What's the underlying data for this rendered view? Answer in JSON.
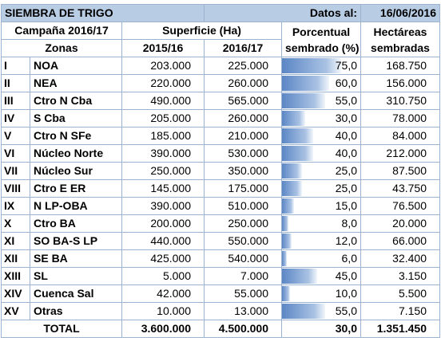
{
  "title": "SIEMBRA DE TRIGO",
  "datos_label": "Datos al:",
  "date": "16/06/2016",
  "headers": {
    "campaign": "Campaña 2016/17",
    "surface": "Superficie (Ha)",
    "percent_l1": "Porcentual",
    "percent_l2": "sembrado (%)",
    "hect_l1": "Hectáreas",
    "hect_l2": "sembradas",
    "zones": "Zonas",
    "y1": "2015/16",
    "y2": "2016/17"
  },
  "rows": [
    {
      "num": "I",
      "zone": "NOA",
      "s15": "203.000",
      "s16": "225.000",
      "pct": "75,0",
      "pct_value": 75,
      "ha": "168.750"
    },
    {
      "num": "II",
      "zone": "NEA",
      "s15": "220.000",
      "s16": "260.000",
      "pct": "60,0",
      "pct_value": 60,
      "ha": "156.000"
    },
    {
      "num": "III",
      "zone": "Ctro N Cba",
      "s15": "490.000",
      "s16": "565.000",
      "pct": "55,0",
      "pct_value": 55,
      "ha": "310.750"
    },
    {
      "num": "IV",
      "zone": "S Cba",
      "s15": "205.000",
      "s16": "260.000",
      "pct": "30,0",
      "pct_value": 30,
      "ha": "78.000"
    },
    {
      "num": "V",
      "zone": "Ctro N SFe",
      "s15": "185.000",
      "s16": "210.000",
      "pct": "40,0",
      "pct_value": 40,
      "ha": "84.000"
    },
    {
      "num": "VI",
      "zone": "Núcleo Norte",
      "s15": "390.000",
      "s16": "530.000",
      "pct": "40,0",
      "pct_value": 40,
      "ha": "212.000"
    },
    {
      "num": "VII",
      "zone": "Núcleo Sur",
      "s15": "250.000",
      "s16": "350.000",
      "pct": "25,0",
      "pct_value": 25,
      "ha": "87.500"
    },
    {
      "num": "VIII",
      "zone": "Ctro E ER",
      "s15": "145.000",
      "s16": "175.000",
      "pct": "25,0",
      "pct_value": 25,
      "ha": "43.750"
    },
    {
      "num": "IX",
      "zone": "N LP-OBA",
      "s15": "390.000",
      "s16": "510.000",
      "pct": "15,0",
      "pct_value": 15,
      "ha": "76.500"
    },
    {
      "num": "X",
      "zone": "Ctro BA",
      "s15": "200.000",
      "s16": "250.000",
      "pct": "8,0",
      "pct_value": 8,
      "ha": "20.000"
    },
    {
      "num": "XI",
      "zone": "SO BA-S LP",
      "s15": "440.000",
      "s16": "550.000",
      "pct": "12,0",
      "pct_value": 12,
      "ha": "66.000"
    },
    {
      "num": "XII",
      "zone": "SE BA",
      "s15": "425.000",
      "s16": "540.000",
      "pct": "6,0",
      "pct_value": 6,
      "ha": "32.400"
    },
    {
      "num": "XIII",
      "zone": "SL",
      "s15": "5.000",
      "s16": "7.000",
      "pct": "45,0",
      "pct_value": 45,
      "ha": "3.150"
    },
    {
      "num": "XIV",
      "zone": "Cuenca Sal",
      "s15": "42.000",
      "s16": "55.000",
      "pct": "10,0",
      "pct_value": 10,
      "ha": "5.500"
    },
    {
      "num": "XV",
      "zone": "Otras",
      "s15": "10.000",
      "s16": "13.000",
      "pct": "55,0",
      "pct_value": 55,
      "ha": "7.150"
    }
  ],
  "total": {
    "label": "TOTAL",
    "s15": "3.600.000",
    "s16": "4.500.000",
    "pct": "30,0",
    "pct_value": 30,
    "ha": "1.351.450"
  }
}
